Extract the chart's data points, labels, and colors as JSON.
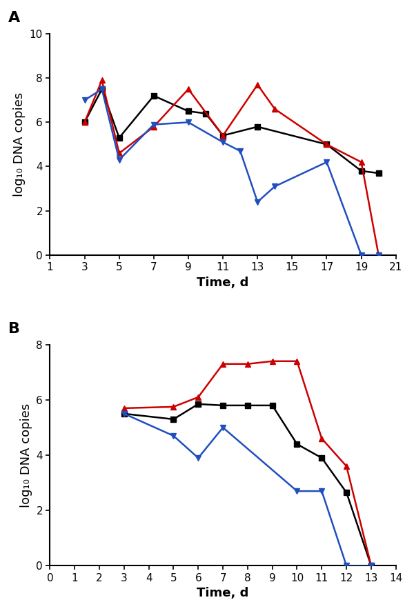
{
  "panel_A": {
    "title": "A",
    "xlim": [
      1,
      21
    ],
    "ylim": [
      0,
      10
    ],
    "xticks": [
      1,
      3,
      5,
      7,
      9,
      11,
      13,
      15,
      17,
      19,
      21
    ],
    "yticks": [
      0,
      2,
      4,
      6,
      8,
      10
    ],
    "xlabel": "Time, d",
    "ylabel": "log₁₀ DNA copies",
    "black": {
      "x": [
        3,
        4,
        5,
        7,
        9,
        10,
        11,
        13,
        17,
        19,
        20
      ],
      "y": [
        6.0,
        7.5,
        5.3,
        7.2,
        6.5,
        6.4,
        5.4,
        5.8,
        5.0,
        3.8,
        3.7
      ],
      "color": "#000000",
      "marker": "s"
    },
    "red": {
      "x": [
        3,
        4,
        5,
        7,
        9,
        11,
        13,
        14,
        17,
        19,
        20
      ],
      "y": [
        6.0,
        7.9,
        4.6,
        5.8,
        7.5,
        5.4,
        7.7,
        6.6,
        5.0,
        4.2,
        0.0
      ],
      "color": "#cc0000",
      "marker": "^"
    },
    "blue": {
      "x": [
        3,
        4,
        5,
        7,
        9,
        11,
        12,
        13,
        14,
        17,
        19,
        20
      ],
      "y": [
        7.0,
        7.5,
        4.3,
        5.9,
        6.0,
        5.1,
        4.7,
        2.4,
        3.1,
        4.2,
        0.0,
        0.0
      ],
      "color": "#1f4fbf",
      "marker": "v"
    }
  },
  "panel_B": {
    "title": "B",
    "xlim": [
      0,
      14
    ],
    "ylim": [
      0,
      8
    ],
    "xticks": [
      0,
      1,
      2,
      3,
      4,
      5,
      6,
      7,
      8,
      9,
      10,
      11,
      12,
      13,
      14
    ],
    "yticks": [
      0,
      2,
      4,
      6,
      8
    ],
    "xlabel": "Time, d",
    "ylabel": "log₁₀ DNA copies",
    "black": {
      "x": [
        3,
        5,
        6,
        7,
        8,
        9,
        10,
        11,
        12,
        13
      ],
      "y": [
        5.5,
        5.3,
        5.85,
        5.8,
        5.8,
        5.8,
        4.4,
        3.9,
        2.65,
        0.0
      ],
      "color": "#000000",
      "marker": "s"
    },
    "red": {
      "x": [
        3,
        5,
        6,
        7,
        8,
        9,
        10,
        11,
        12,
        13
      ],
      "y": [
        5.7,
        5.75,
        6.1,
        7.3,
        7.3,
        7.4,
        7.4,
        4.6,
        3.6,
        0.0
      ],
      "color": "#cc0000",
      "marker": "^"
    },
    "blue": {
      "x": [
        3,
        5,
        6,
        7,
        10,
        11,
        12,
        13
      ],
      "y": [
        5.5,
        4.7,
        3.9,
        5.0,
        2.7,
        2.7,
        0.0,
        0.0
      ],
      "color": "#1f4fbf",
      "marker": "v"
    }
  },
  "line_width": 1.8,
  "marker_size": 6,
  "label_fontsize": 13,
  "tick_fontsize": 11,
  "title_fontsize": 16,
  "background_color": "#ffffff"
}
